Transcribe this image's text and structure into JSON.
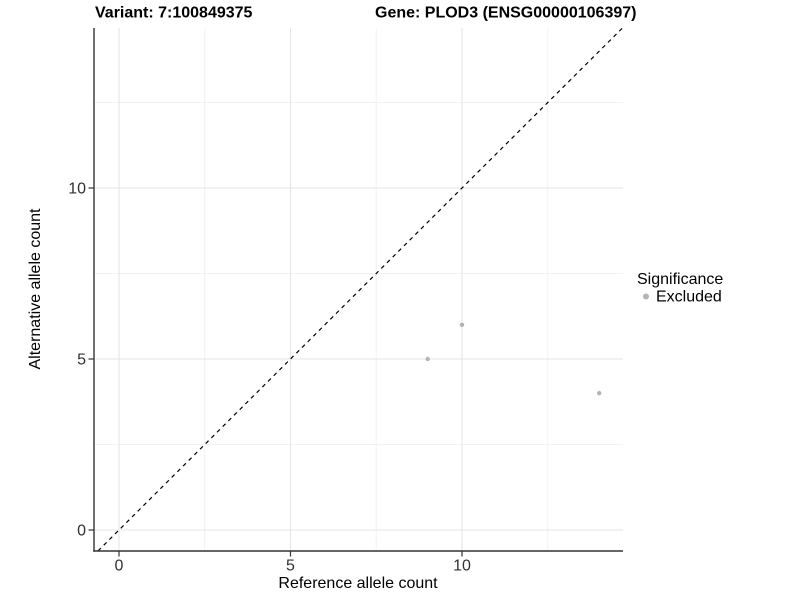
{
  "header": {
    "title_left": "Variant: 7:100849375",
    "title_right": "Gene: PLOD3 (ENSG00000106397)"
  },
  "chart_data": {
    "type": "scatter",
    "title_left": "Variant: 7:100849375",
    "title_right": "Gene: PLOD3 (ENSG00000106397)",
    "xlabel": "Reference allele count",
    "ylabel": "Alternative allele count",
    "x_ticks": [
      0,
      5,
      10
    ],
    "y_ticks": [
      0,
      5,
      10
    ],
    "x_minor_gridlines": [
      2.5,
      7.5,
      12.5
    ],
    "y_minor_gridlines": [
      2.5,
      7.5,
      12.5
    ],
    "xlim": [
      -0.73,
      14.69
    ],
    "ylim": [
      -0.61,
      14.68
    ],
    "grid": true,
    "identity_line": {
      "style": "dashed",
      "equation": "y = x"
    },
    "series": [
      {
        "name": "Excluded",
        "color": "#b3b3b3",
        "points": [
          {
            "x": 9,
            "y": 5
          },
          {
            "x": 10,
            "y": 6
          },
          {
            "x": 14,
            "y": 4
          }
        ]
      }
    ],
    "legend": {
      "title": "Significance",
      "position": "right",
      "items": [
        {
          "label": "Excluded",
          "color": "#b3b3b3"
        }
      ]
    }
  },
  "colors": {
    "background": "#ffffff",
    "point": "#b3b3b3",
    "axis_line": "#333333",
    "tick_mark": "#333333",
    "tick_label": "#303030",
    "title": "#000000",
    "grid_major": "#e5e5e5",
    "grid_minor": "#f2f2f2",
    "identity_line": "#000000"
  }
}
